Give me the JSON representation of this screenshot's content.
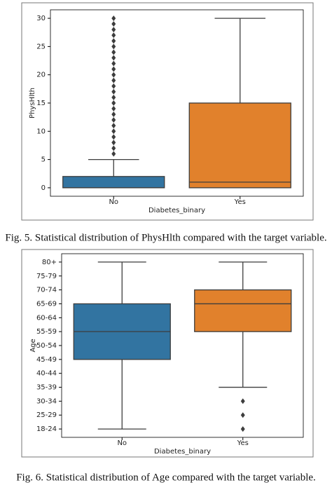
{
  "chart_data": [
    {
      "type": "box",
      "caption": "Fig. 5. Statistical distribution of PhysHlth compared with the target variable.",
      "xlabel": "Diabetes_binary",
      "ylabel": "PhysHlth",
      "categories": [
        "No",
        "Yes"
      ],
      "colors": [
        "#3274a1",
        "#e1812c"
      ],
      "ylim": [
        -1.5,
        31.5
      ],
      "yticks": [
        0,
        5,
        10,
        15,
        20,
        25,
        30
      ],
      "boxes": [
        {
          "whislo": 0,
          "q1": 0,
          "median": 0,
          "q3": 2,
          "whishi": 5,
          "fliers": [
            6,
            7,
            8,
            9,
            10,
            11,
            12,
            13,
            14,
            15,
            16,
            17,
            18,
            19,
            20,
            21,
            22,
            23,
            24,
            25,
            26,
            27,
            28,
            29,
            30
          ]
        },
        {
          "whislo": 0,
          "q1": 0,
          "median": 1,
          "q3": 15,
          "whishi": 30,
          "fliers": []
        }
      ]
    },
    {
      "type": "box",
      "caption": "Fig. 6. Statistical distribution of Age compared with the target variable.",
      "xlabel": "Diabetes_binary",
      "ylabel": "Age",
      "categories": [
        "No",
        "Yes"
      ],
      "colors": [
        "#3274a1",
        "#e1812c"
      ],
      "ylim": [
        0.4,
        13.6
      ],
      "yticks": [
        {
          "value": 1,
          "label": "18-24"
        },
        {
          "value": 2,
          "label": "25-29"
        },
        {
          "value": 3,
          "label": "30-34"
        },
        {
          "value": 4,
          "label": "35-39"
        },
        {
          "value": 5,
          "label": "40-44"
        },
        {
          "value": 6,
          "label": "45-49"
        },
        {
          "value": 7,
          "label": "50-54"
        },
        {
          "value": 8,
          "label": "55-59"
        },
        {
          "value": 9,
          "label": "60-64"
        },
        {
          "value": 10,
          "label": "65-69"
        },
        {
          "value": 11,
          "label": "70-74"
        },
        {
          "value": 12,
          "label": "75-79"
        },
        {
          "value": 13,
          "label": "80+"
        }
      ],
      "boxes": [
        {
          "whislo": 1,
          "q1": 6,
          "median": 8,
          "q3": 10,
          "whishi": 13,
          "fliers": []
        },
        {
          "whislo": 4,
          "q1": 8,
          "median": 10,
          "q3": 11,
          "whishi": 13,
          "fliers": [
            1,
            2,
            3
          ]
        }
      ]
    }
  ]
}
